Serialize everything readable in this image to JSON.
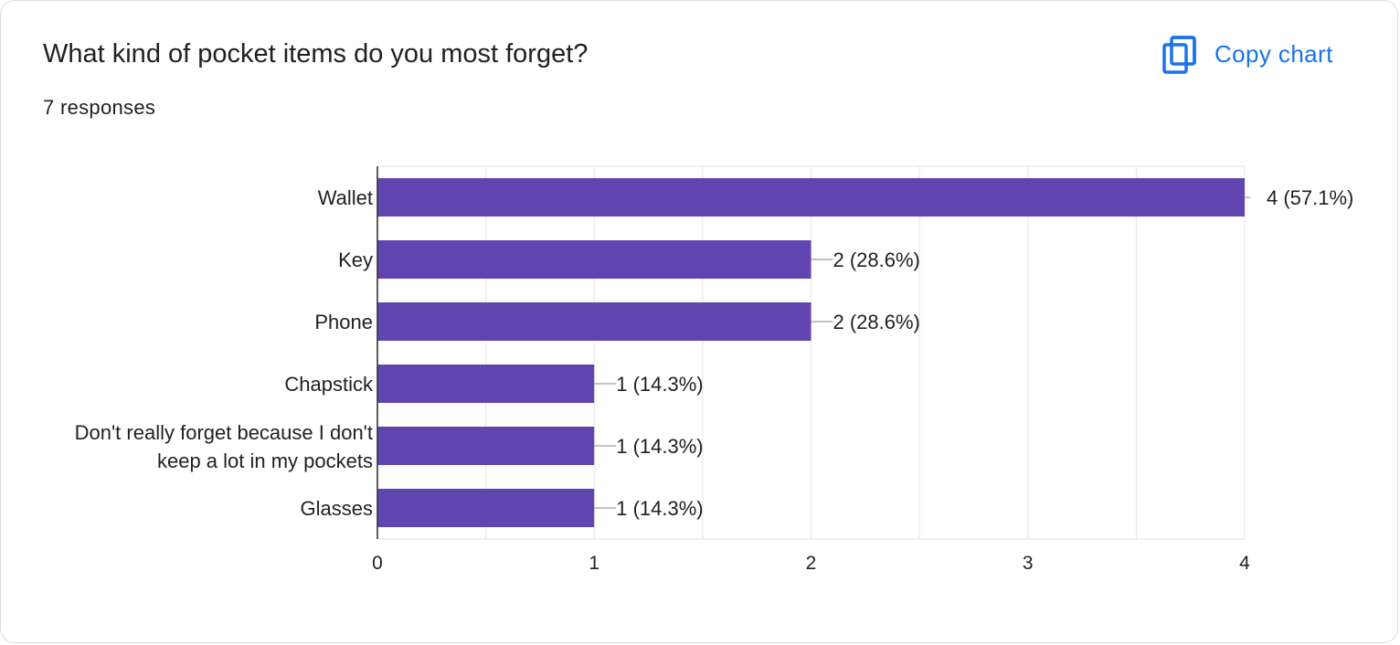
{
  "header": {
    "title": "What kind of pocket items do you most forget?",
    "responses": "7 responses",
    "copy_label": "Copy chart",
    "copy_icon": "copy-icon"
  },
  "colors": {
    "bar": "#6244b1",
    "accent": "#1a73e8",
    "grid": "#e8e8e8",
    "axis": "#333333",
    "leader": "#9e9e9e"
  },
  "chart_data": {
    "type": "bar",
    "orientation": "horizontal",
    "categories": [
      [
        "Wallet"
      ],
      [
        "Key"
      ],
      [
        "Phone"
      ],
      [
        "Chapstick"
      ],
      [
        "Don't really forget because I don't",
        "keep a lot in my pockets"
      ],
      [
        "Glasses"
      ]
    ],
    "values": [
      4,
      2,
      2,
      1,
      1,
      1
    ],
    "value_labels": [
      "4 (57.1%)",
      "2 (28.6%)",
      "2 (28.6%)",
      "1 (14.3%)",
      "1 (14.3%)",
      "1 (14.3%)"
    ],
    "xlim": [
      0,
      4
    ],
    "xticks": [
      "0",
      "1",
      "2",
      "3",
      "4"
    ],
    "grid": true
  }
}
